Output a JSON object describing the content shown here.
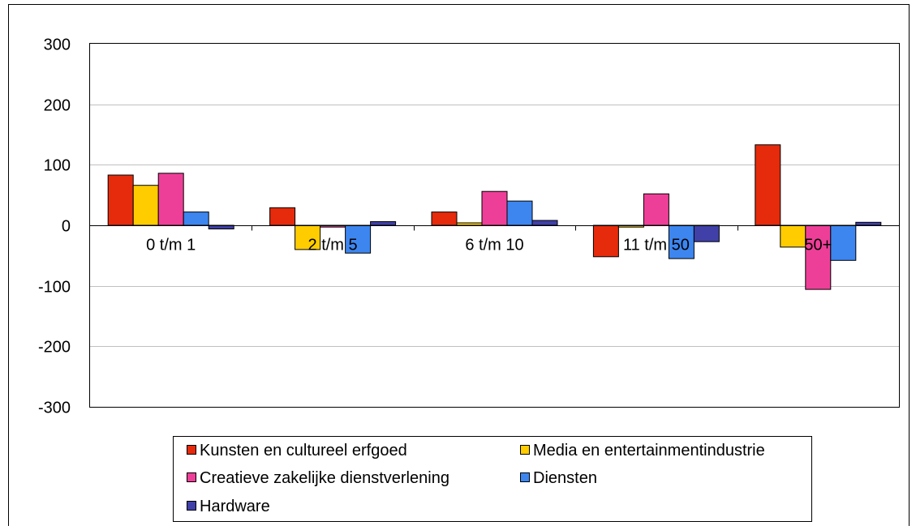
{
  "chart_data": {
    "type": "bar",
    "categories": [
      "0 t/m 1",
      "2 t/m 5",
      "6 t/m 10",
      "11 t/m 50",
      "50+"
    ],
    "series": [
      {
        "name": "Kunsten en cultureel erfgoed",
        "color": "#e52b0c",
        "values": [
          83,
          29,
          22,
          -52,
          133
        ]
      },
      {
        "name": "Media en entertainmentindustrie",
        "color": "#ffcc00",
        "values": [
          66,
          -40,
          4,
          -3,
          -36
        ]
      },
      {
        "name": "Creatieve zakelijke dienstverlening",
        "color": "#ee3f98",
        "values": [
          86,
          -3,
          56,
          52,
          -106
        ]
      },
      {
        "name": "Diensten",
        "color": "#3d86f0",
        "values": [
          22,
          -46,
          40,
          -55,
          -58
        ]
      },
      {
        "name": "Hardware",
        "color": "#4040a8",
        "values": [
          -6,
          6,
          8,
          -27,
          5
        ]
      }
    ],
    "ylim": [
      -300,
      300
    ],
    "yticks": [
      300,
      200,
      100,
      0,
      -100,
      -200,
      -300
    ],
    "grid": true,
    "legend_position": "bottom"
  }
}
